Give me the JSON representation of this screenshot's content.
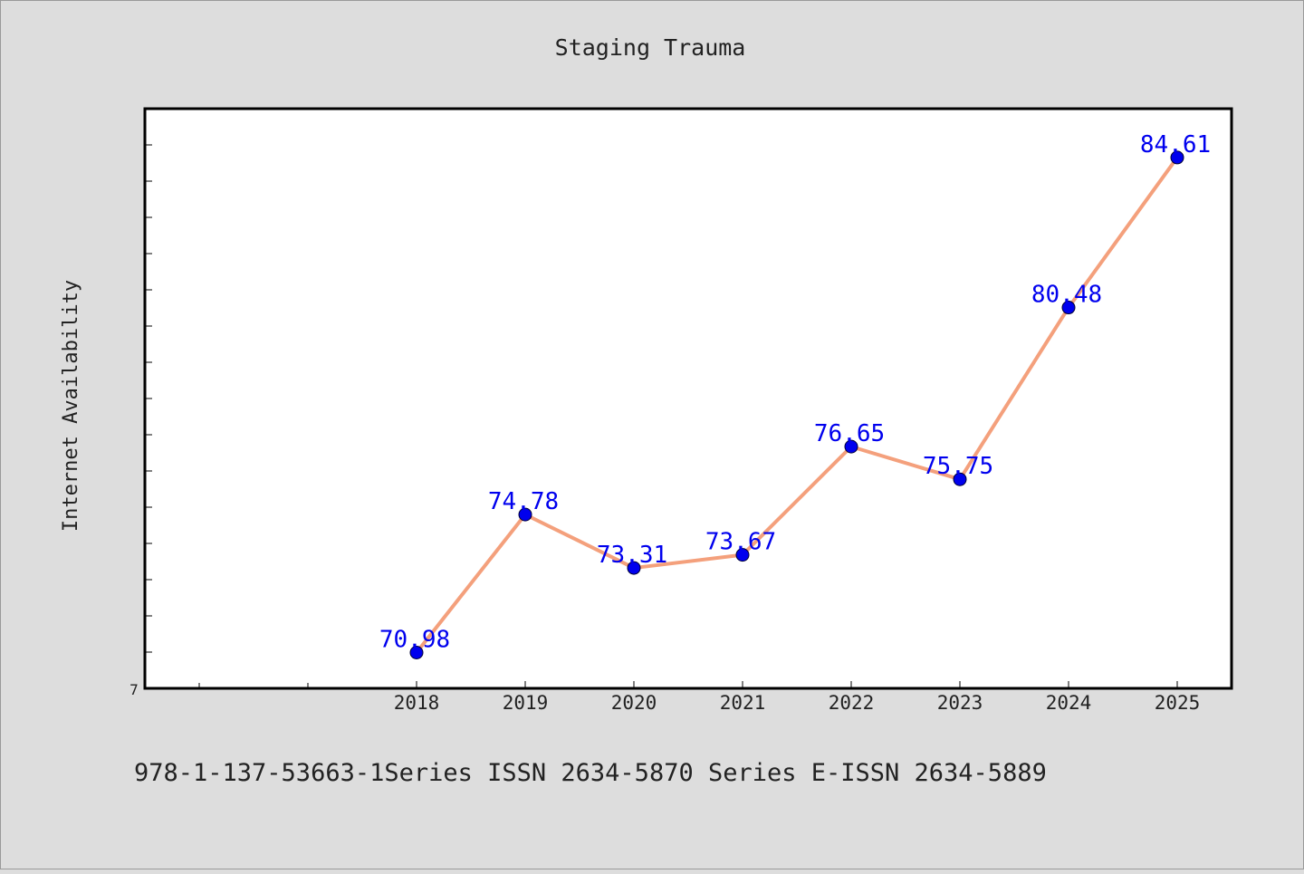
{
  "chart_data": {
    "type": "line",
    "title": "Staging Trauma",
    "xlabel": "",
    "ylabel": "Internet Availability",
    "x": [
      "2018",
      "2019",
      "2020",
      "2021",
      "2022",
      "2023",
      "2024",
      "2025"
    ],
    "values": [
      70.98,
      74.78,
      73.31,
      73.67,
      76.65,
      75.75,
      80.48,
      84.61
    ],
    "data_labels": [
      "70.98",
      "74.78",
      "73.31",
      "73.67",
      "76.65",
      "75.75",
      "80.48",
      "84.61"
    ],
    "y_tick_labels": [
      "7"
    ],
    "ylim": [
      70,
      86
    ],
    "grid": false,
    "legend": "none",
    "line_color": "#f4a07c",
    "marker_color": "#0000ee",
    "label_color": "#0000ee"
  },
  "footer_text": "978-1-137-53663-1Series ISSN 2634-5870 Series E-ISSN 2634-5889"
}
